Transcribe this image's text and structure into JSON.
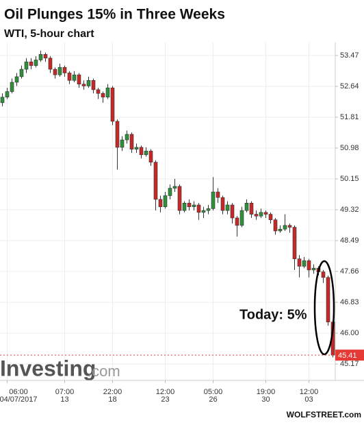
{
  "chart_data": {
    "type": "candlestick",
    "title": "Oil Plunges 15% in Three Weeks",
    "subtitle": "WTI, 5-hour chart",
    "annotation": "Today: 5%",
    "watermark": [
      "Investing",
      ".com"
    ],
    "source": "WOLFSTREET.com",
    "up_color": "#2f8f3a",
    "down_color": "#c62828",
    "grid": true,
    "ylim": [
      44.73,
      53.82
    ],
    "yticks": [
      53.47,
      52.64,
      51.81,
      50.98,
      50.15,
      49.32,
      48.49,
      47.66,
      46.83,
      {
        "value": 46,
        "label": "46.00"
      },
      45.17
    ],
    "categories": [
      null,
      [
        "06:00",
        "04/07/2017"
      ],
      null,
      null,
      null,
      null,
      null,
      null,
      null,
      null,
      null,
      null,
      null,
      [
        "07:00",
        "13"
      ],
      null,
      null,
      null,
      null,
      null,
      null,
      null,
      null,
      null,
      [
        "22:00",
        "18"
      ],
      null,
      null,
      null,
      null,
      null,
      null,
      null,
      null,
      null,
      null,
      [
        "12:00",
        "23"
      ],
      null,
      null,
      null,
      null,
      null,
      null,
      null,
      null,
      null,
      [
        "05:00",
        "26"
      ],
      null,
      null,
      null,
      null,
      null,
      null,
      null,
      null,
      null,
      null,
      [
        "19:00",
        "30"
      ],
      null,
      null,
      null,
      null,
      null,
      null,
      null,
      null,
      [
        "12:00",
        "03"
      ],
      null,
      null,
      null,
      null,
      null
    ],
    "open": [
      52.2,
      52.35,
      52.5,
      52.75,
      52.9,
      53.1,
      53.3,
      53.2,
      53.35,
      53.5,
      53.4,
      53.1,
      52.95,
      53.15,
      53.0,
      52.8,
      52.95,
      52.7,
      52.65,
      52.8,
      52.55,
      52.45,
      52.35,
      52.6,
      51.7,
      51.0,
      51.2,
      51.35,
      50.95,
      51.0,
      50.8,
      50.9,
      50.6,
      49.6,
      49.4,
      49.7,
      49.9,
      49.95,
      49.3,
      49.5,
      49.4,
      49.45,
      49.25,
      49.3,
      49.35,
      49.8,
      49.65,
      49.3,
      49.45,
      49.1,
      48.9,
      49.3,
      49.5,
      49.2,
      49.15,
      49.25,
      49.2,
      49.05,
      48.75,
      48.8,
      48.9,
      48.85,
      48.0,
      47.8,
      47.95,
      47.7,
      47.75,
      47.65,
      47.5,
      46.3
    ],
    "high": [
      52.45,
      52.6,
      52.85,
      53.0,
      53.2,
      53.4,
      53.4,
      53.45,
      53.6,
      53.55,
      53.45,
      53.15,
      53.25,
      53.2,
      53.05,
      53.05,
      53.0,
      52.8,
      52.9,
      52.85,
      52.6,
      52.5,
      52.7,
      52.65,
      51.75,
      51.3,
      51.45,
      51.4,
      51.1,
      51.05,
      51.0,
      50.95,
      50.65,
      49.7,
      49.8,
      50.0,
      50.15,
      50.0,
      49.55,
      49.6,
      49.55,
      49.5,
      49.4,
      49.45,
      50.2,
      49.9,
      49.7,
      49.55,
      49.5,
      49.15,
      49.4,
      49.6,
      49.55,
      49.3,
      49.35,
      49.3,
      49.25,
      49.1,
      48.9,
      49.2,
      48.95,
      48.9,
      48.1,
      48.05,
      48.0,
      47.85,
      47.8,
      47.7,
      47.55,
      46.35
    ],
    "low": [
      52.1,
      52.3,
      52.45,
      52.65,
      52.85,
      53.0,
      53.1,
      53.15,
      53.3,
      53.3,
      53.0,
      52.85,
      52.9,
      52.9,
      52.7,
      52.75,
      52.6,
      52.55,
      52.6,
      52.45,
      52.3,
      52.2,
      52.3,
      51.6,
      50.4,
      50.9,
      51.1,
      50.85,
      50.85,
      50.7,
      50.75,
      50.5,
      49.3,
      49.25,
      49.35,
      49.6,
      49.8,
      49.2,
      49.25,
      49.3,
      49.3,
      49.05,
      49.1,
      49.2,
      49.3,
      49.5,
      49.2,
      49.2,
      48.95,
      48.6,
      48.85,
      49.25,
      49.1,
      49.05,
      49.1,
      49.1,
      48.95,
      48.65,
      48.7,
      48.75,
      48.7,
      47.7,
      47.5,
      47.75,
      47.5,
      47.6,
      47.55,
      47.35,
      46.2,
      45.35
    ],
    "close": [
      52.35,
      52.5,
      52.75,
      52.9,
      53.1,
      53.3,
      53.2,
      53.35,
      53.5,
      53.4,
      53.1,
      52.95,
      53.15,
      53.0,
      52.8,
      52.95,
      52.7,
      52.65,
      52.8,
      52.55,
      52.45,
      52.35,
      52.6,
      51.7,
      51.0,
      51.2,
      51.35,
      50.95,
      51.0,
      50.8,
      50.9,
      50.6,
      49.6,
      49.4,
      49.7,
      49.9,
      49.95,
      49.3,
      49.5,
      49.4,
      49.45,
      49.25,
      49.3,
      49.35,
      49.8,
      49.65,
      49.3,
      49.45,
      49.1,
      48.9,
      49.3,
      49.5,
      49.2,
      49.15,
      49.25,
      49.2,
      49.05,
      48.75,
      48.8,
      48.9,
      48.85,
      48.0,
      47.8,
      47.95,
      47.7,
      47.75,
      47.65,
      47.5,
      46.3,
      45.41
    ]
  }
}
